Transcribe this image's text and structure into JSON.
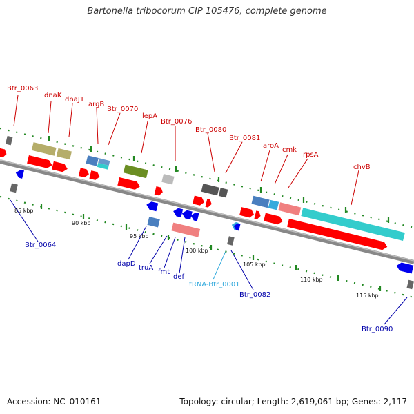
{
  "title": "Bartonella tribocorum CIP 105476, complete genome",
  "accession_label": "Accession: NC_010161",
  "summary": "Topology: circular; Length: 2,619,061 bp; Genes: 2,117",
  "colors": {
    "forward_label": "#cc0000",
    "reverse_label": "#0000aa",
    "rna_label": "#33aadd",
    "backbone": "#888888",
    "tick": "#228822",
    "cds_forward": "#ff0000",
    "cds_reverse": "#0000ee"
  },
  "scale_labels": [
    "85 kbp",
    "90 kbp",
    "95 kbp",
    "100 kbp",
    "105 kbp",
    "110 kbp",
    "115 kbp"
  ],
  "forward_genes": [
    "Btr_0063",
    "dnaK",
    "dnaJ1",
    "argB",
    "Btr_0070",
    "lepA",
    "Btr_0076",
    "Btr_0080",
    "Btr_0081",
    "aroA",
    "cmk",
    "rpsA",
    "chvB"
  ],
  "reverse_genes": [
    "Btr_0064",
    "dapD",
    "truA",
    "fmt",
    "def",
    "tRNA-Btr_0001",
    "Btr_0082",
    "Btr_0090"
  ]
}
